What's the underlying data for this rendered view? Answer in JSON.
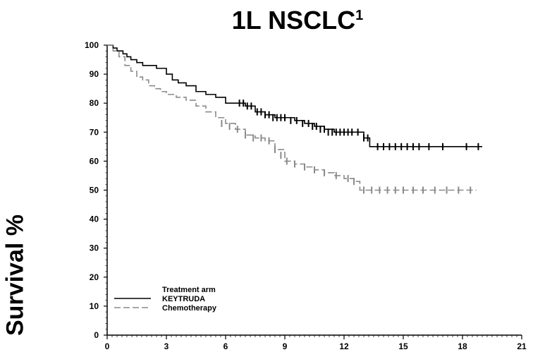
{
  "chart_data": {
    "type": "line",
    "title": "1L NSCLC",
    "title_superscript": "1",
    "xlabel": "",
    "ylabel": "Survival %",
    "xlim": [
      0,
      21
    ],
    "ylim": [
      0,
      100
    ],
    "xticks": [
      0,
      3,
      6,
      9,
      12,
      15,
      18,
      21
    ],
    "yticks": [
      0,
      10,
      20,
      30,
      40,
      50,
      60,
      70,
      80,
      90,
      100
    ],
    "grid": false,
    "legend": {
      "title": "Treatment arm",
      "placement": "bottom-left",
      "entries": [
        "KEYTRUDA",
        "Chemotherapy"
      ]
    },
    "series": [
      {
        "name": "KEYTRUDA",
        "color": "#000000",
        "dash": "solid",
        "x": [
          0,
          0.3,
          0.5,
          0.8,
          1.0,
          1.2,
          1.5,
          1.8,
          2.0,
          2.5,
          3.0,
          3.3,
          3.6,
          4.0,
          4.5,
          5.0,
          5.5,
          6.0,
          6.5,
          7.0,
          7.5,
          8.0,
          8.5,
          9.0,
          9.5,
          10.0,
          10.5,
          11.0,
          11.5,
          12.0,
          12.5,
          13.0,
          13.3,
          13.5,
          14.0,
          15.0,
          16.0,
          17.0,
          18.0,
          19.0
        ],
        "y": [
          100,
          99,
          98,
          97,
          96,
          95,
          94,
          93,
          93,
          92,
          90,
          88,
          87,
          86,
          84,
          83,
          82,
          80,
          80,
          79,
          77,
          76,
          75,
          75,
          74,
          73,
          72,
          71,
          70,
          70,
          70,
          68,
          65,
          65,
          65,
          65,
          65,
          65,
          65,
          65
        ],
        "censor_x": [
          6.7,
          6.9,
          7.1,
          7.3,
          7.6,
          7.8,
          8.0,
          8.2,
          8.4,
          8.6,
          8.8,
          9.0,
          9.3,
          9.6,
          9.9,
          10.2,
          10.4,
          10.6,
          10.8,
          11.0,
          11.2,
          11.4,
          11.6,
          11.8,
          12.0,
          12.2,
          12.4,
          12.7,
          13.0,
          13.2,
          13.7,
          14.0,
          14.3,
          14.6,
          14.9,
          15.2,
          15.5,
          15.8,
          16.3,
          17.0,
          18.2,
          18.8
        ],
        "censor_y": [
          80,
          80,
          79,
          79,
          77,
          77,
          76,
          76,
          75,
          75,
          75,
          75,
          74,
          74,
          73,
          73,
          72,
          72,
          71,
          71,
          70,
          70,
          70,
          70,
          70,
          70,
          70,
          70,
          68,
          68,
          65,
          65,
          65,
          65,
          65,
          65,
          65,
          65,
          65,
          65,
          65,
          65
        ]
      },
      {
        "name": "Chemotherapy",
        "color": "#8a8a8a",
        "dash": "dashed",
        "x": [
          0,
          0.3,
          0.6,
          0.9,
          1.2,
          1.5,
          1.8,
          2.1,
          2.4,
          2.7,
          3.0,
          3.5,
          4.0,
          4.5,
          5.0,
          5.5,
          6.0,
          6.5,
          7.0,
          7.5,
          8.0,
          8.5,
          9.0,
          9.5,
          10.0,
          10.5,
          11.0,
          11.5,
          12.0,
          12.5,
          12.8,
          13.0,
          14.0,
          15.0,
          16.0,
          17.0,
          18.0,
          18.7
        ],
        "y": [
          100,
          98,
          96,
          93,
          91,
          89,
          88,
          86,
          85,
          84,
          83,
          82,
          81,
          79,
          77,
          75,
          73,
          71,
          69,
          68,
          67,
          64,
          60,
          59,
          58,
          57,
          56,
          55,
          54,
          53,
          50,
          50,
          50,
          50,
          50,
          50,
          50,
          50
        ],
        "censor_x": [
          5.8,
          6.2,
          6.6,
          7.0,
          7.4,
          7.8,
          8.2,
          8.5,
          8.8,
          9.1,
          9.5,
          10.0,
          10.5,
          11.0,
          11.6,
          12.2,
          12.5,
          13.0,
          13.4,
          13.8,
          14.2,
          14.6,
          15.0,
          15.5,
          16.0,
          16.6,
          17.2,
          17.8,
          18.4
        ],
        "censor_y": [
          73,
          72,
          71,
          69,
          68,
          68,
          67,
          64,
          62,
          60,
          59,
          58,
          57,
          56,
          55,
          54,
          53,
          50,
          50,
          50,
          50,
          50,
          50,
          50,
          50,
          50,
          50,
          50,
          50
        ]
      }
    ]
  }
}
